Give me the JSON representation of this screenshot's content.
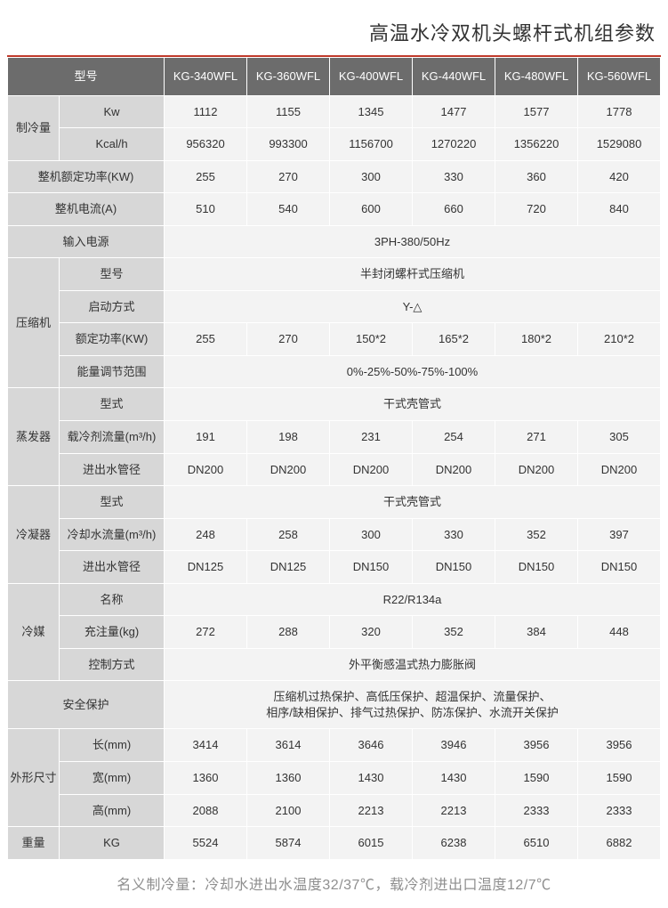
{
  "title": "高温水冷双机头螺杆式机组参数",
  "columns_header_label": "型号",
  "models": [
    "KG-340WFL",
    "KG-360WFL",
    "KG-400WFL",
    "KG-440WFL",
    "KG-480WFL",
    "KG-560WFL"
  ],
  "groups": [
    {
      "label": "制冷量",
      "rows": [
        {
          "label": "Kw",
          "values": [
            "1112",
            "1155",
            "1345",
            "1477",
            "1577",
            "1778"
          ]
        },
        {
          "label": "Kcal/h",
          "values": [
            "956320",
            "993300",
            "1156700",
            "1270220",
            "1356220",
            "1529080"
          ]
        }
      ]
    }
  ],
  "single_rows": [
    {
      "label": "整机额定功率(KW)",
      "values": [
        "255",
        "270",
        "300",
        "330",
        "360",
        "420"
      ]
    },
    {
      "label": "整机电流(A)",
      "values": [
        "510",
        "540",
        "600",
        "660",
        "720",
        "840"
      ]
    },
    {
      "label": "输入电源",
      "span_value": "3PH-380/50Hz"
    }
  ],
  "compressor": {
    "group_label": "压缩机",
    "rows": [
      {
        "label": "型号",
        "span_value": "半封闭螺杆式压缩机"
      },
      {
        "label": "启动方式",
        "span_value": "Y-△"
      },
      {
        "label": "额定功率(KW)",
        "values": [
          "255",
          "270",
          "150*2",
          "165*2",
          "180*2",
          "210*2"
        ]
      },
      {
        "label": "能量调节范围",
        "span_value": "0%-25%-50%-75%-100%"
      }
    ]
  },
  "evaporator": {
    "group_label": "蒸发器",
    "rows": [
      {
        "label": "型式",
        "span_value": "干式壳管式"
      },
      {
        "label": "载冷剂流量(m³/h)",
        "values": [
          "191",
          "198",
          "231",
          "254",
          "271",
          "305"
        ]
      },
      {
        "label": "进出水管径",
        "values": [
          "DN200",
          "DN200",
          "DN200",
          "DN200",
          "DN200",
          "DN200"
        ]
      }
    ]
  },
  "condenser": {
    "group_label": "冷凝器",
    "rows": [
      {
        "label": "型式",
        "span_value": "干式壳管式"
      },
      {
        "label": "冷却水流量(m³/h)",
        "values": [
          "248",
          "258",
          "300",
          "330",
          "352",
          "397"
        ]
      },
      {
        "label": "进出水管径",
        "values": [
          "DN125",
          "DN125",
          "DN150",
          "DN150",
          "DN150",
          "DN150"
        ]
      }
    ]
  },
  "refrigerant": {
    "group_label": "冷媒",
    "rows": [
      {
        "label": "名称",
        "span_value": "R22/R134a"
      },
      {
        "label": "充注量(kg)",
        "values": [
          "272",
          "288",
          "320",
          "352",
          "384",
          "448"
        ]
      },
      {
        "label": "控制方式",
        "span_value": "外平衡感温式热力膨胀阀"
      }
    ]
  },
  "safety": {
    "label": "安全保护",
    "span_value_line1": "压缩机过热保护、高低压保护、超温保护、流量保护、",
    "span_value_line2": "相序/缺相保护、排气过热保护、防冻保护、水流开关保护"
  },
  "dimensions": {
    "group_label": "外形尺寸",
    "rows": [
      {
        "label": "长(mm)",
        "values": [
          "3414",
          "3614",
          "3646",
          "3946",
          "3956",
          "3956"
        ]
      },
      {
        "label": "宽(mm)",
        "values": [
          "1360",
          "1360",
          "1430",
          "1430",
          "1590",
          "1590"
        ]
      },
      {
        "label": "高(mm)",
        "values": [
          "2088",
          "2100",
          "2213",
          "2213",
          "2333",
          "2333"
        ]
      }
    ]
  },
  "weight": {
    "group_label": "重量",
    "rows": [
      {
        "label": "KG",
        "values": [
          "5524",
          "5874",
          "6015",
          "6238",
          "6510",
          "6882"
        ]
      }
    ]
  },
  "footnote": "名义制冷量：冷却水进出水温度32/37℃，载冷剂进出口温度12/7℃"
}
